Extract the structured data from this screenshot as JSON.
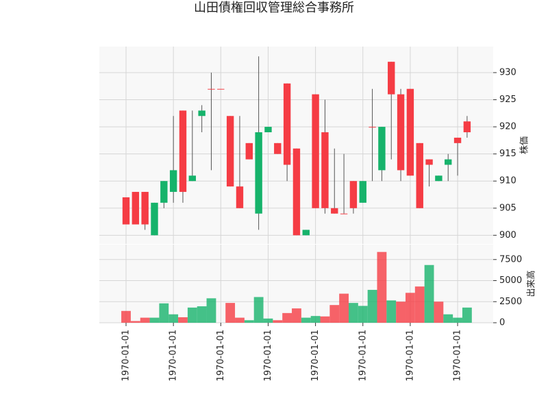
{
  "chart_data": {
    "type": "candlestick",
    "title": "山田債権回収管理総合事務所",
    "ylabel": "株価",
    "volume_label": "出来高",
    "categories": [
      "1970-01-01",
      null,
      null,
      null,
      null,
      "1970-01-01",
      null,
      null,
      null,
      null,
      "1970-01-01",
      null,
      null,
      null,
      null,
      "1970-01-01",
      null,
      null,
      null,
      null,
      "1970-01-01",
      null,
      null,
      null,
      null,
      "1970-01-01",
      null,
      null,
      null,
      null,
      "1970-01-01",
      null,
      null,
      null,
      null,
      "1970-01-01",
      null
    ],
    "open": [
      907,
      908,
      908,
      900,
      906,
      908,
      923,
      910,
      922,
      927,
      927,
      922,
      909,
      917,
      904,
      919,
      917,
      928,
      916,
      900,
      926,
      919,
      905,
      904,
      910,
      906,
      920,
      912,
      932,
      926,
      927,
      917,
      914,
      910,
      913,
      918,
      921
    ],
    "high": [
      907,
      908,
      908,
      906,
      910,
      922,
      923,
      923,
      924,
      930,
      927,
      922,
      922,
      917,
      933,
      920,
      917,
      928,
      916,
      901,
      926,
      925,
      916,
      915,
      910,
      910,
      927,
      920,
      932,
      927,
      927,
      917,
      914,
      911,
      915,
      918,
      922
    ],
    "low": [
      902,
      902,
      901,
      900,
      905,
      906,
      906,
      910,
      919,
      912,
      927,
      909,
      905,
      914,
      901,
      919,
      915,
      910,
      900,
      900,
      905,
      904,
      904,
      904,
      904,
      906,
      910,
      910,
      914,
      910,
      911,
      905,
      909,
      910,
      910,
      911,
      918
    ],
    "close": [
      902,
      902,
      902,
      906,
      910,
      912,
      908,
      911,
      923,
      927,
      927,
      909,
      905,
      914,
      919,
      920,
      915,
      913,
      900,
      901,
      905,
      905,
      904,
      904,
      905,
      910,
      920,
      920,
      926,
      912,
      911,
      905,
      913,
      911,
      914,
      917,
      919
    ],
    "volume": [
      1400,
      200,
      600,
      600,
      2300,
      1000,
      650,
      1800,
      1950,
      2900,
      0,
      2350,
      600,
      300,
      3050,
      500,
      300,
      1150,
      1700,
      600,
      800,
      750,
      2100,
      3450,
      2350,
      2000,
      3900,
      8400,
      2650,
      2500,
      3550,
      4300,
      6850,
      2500,
      1000,
      600,
      1800
    ],
    "up_color": "#16b36b",
    "down_color": "#f53c44",
    "ylim": [
      898.4,
      934.8
    ],
    "yticks": [
      900,
      905,
      910,
      915,
      920,
      925,
      930
    ],
    "volume_ylim": [
      0,
      9270
    ],
    "volume_yticks": [
      0,
      2500,
      5000,
      7500
    ],
    "grid": true
  }
}
